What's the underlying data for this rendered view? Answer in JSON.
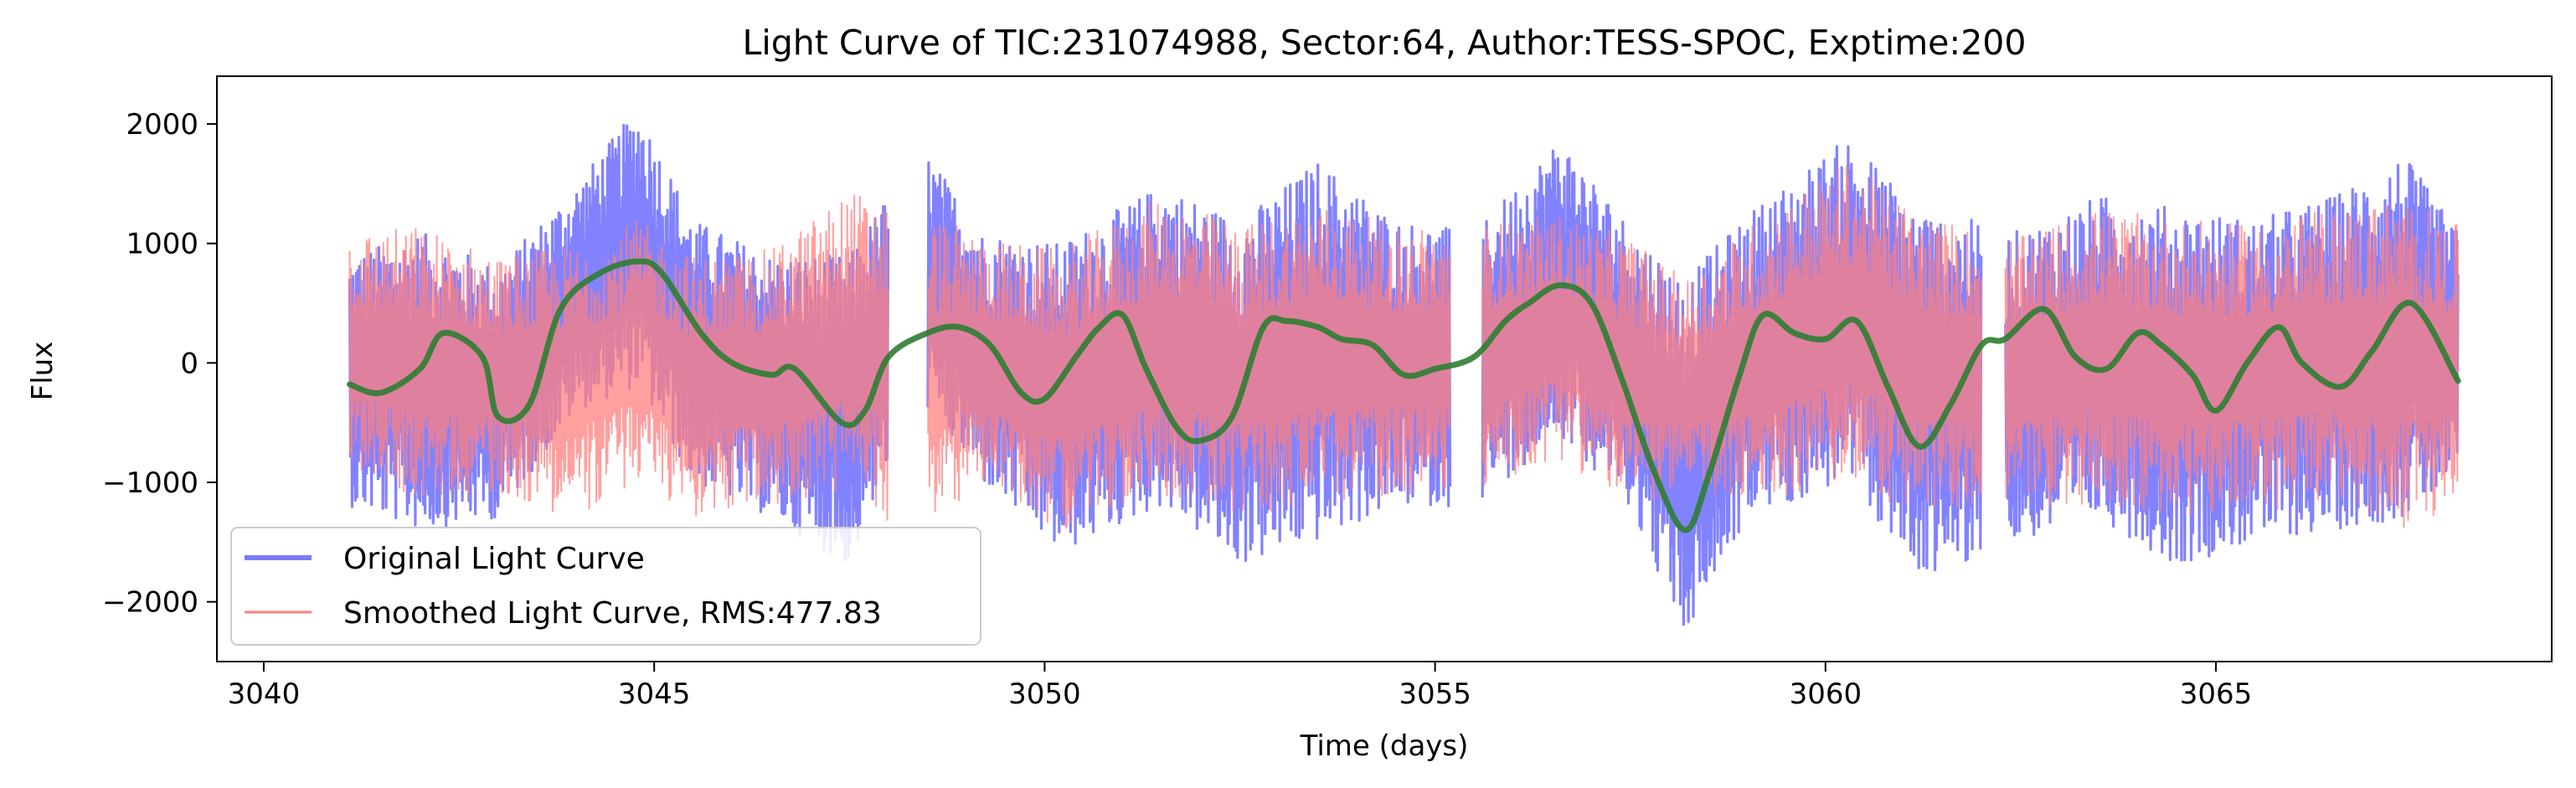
{
  "chart_data": {
    "type": "line",
    "title": "Light Curve of TIC:231074988, Sector:64, Author:TESS-SPOC, Exptime:200",
    "xlabel": "Time (days)",
    "ylabel": "Flux",
    "xlim": [
      3039.4,
      3069.3
    ],
    "ylim": [
      -2500,
      2400
    ],
    "x_ticks": [
      3040,
      3045,
      3050,
      3055,
      3060,
      3065
    ],
    "y_ticks": [
      2000,
      1000,
      0,
      -1000,
      -2000
    ],
    "x_tick_labels": [
      "3040",
      "3045",
      "3050",
      "3055",
      "3060",
      "3065"
    ],
    "y_tick_labels": [
      "2000",
      "1000",
      "0",
      "−1000",
      "−2000"
    ],
    "grid": false,
    "legend_position": "lower-left",
    "gaps": [
      [
        3048.0,
        3048.5
      ],
      [
        3055.2,
        3055.6
      ],
      [
        3062.0,
        3062.3
      ]
    ],
    "series": [
      {
        "name": "Original Light Curve",
        "color": "#7b7bff",
        "x_range": [
          3041.1,
          3068.1
        ],
        "band_envelope": {
          "x": [
            3041.1,
            3042.0,
            3043.0,
            3044.0,
            3044.8,
            3045.5,
            3046.5,
            3047.5,
            3048.4,
            3049.2,
            3050.2,
            3051.5,
            3052.5,
            3053.5,
            3054.5,
            3055.5,
            3056.6,
            3057.5,
            3058.2,
            3059.0,
            3060.3,
            3061.2,
            3062.5,
            3063.5,
            3064.5,
            3065.5,
            3066.5,
            3067.4,
            3068.1
          ],
          "high": [
            900,
            1100,
            800,
            1500,
            2150,
            1200,
            900,
            900,
            1850,
            1100,
            1000,
            1500,
            1200,
            1700,
            1200,
            1100,
            1900,
            1150,
            700,
            1250,
            1900,
            1300,
            1100,
            1400,
            1300,
            1200,
            1400,
            1750,
            1100
          ],
          "low": [
            -1200,
            -1400,
            -1300,
            -400,
            -200,
            -1000,
            -1300,
            -1700,
            -300,
            -1000,
            -1600,
            -1200,
            -1700,
            -1500,
            -1200,
            -1200,
            -600,
            -1200,
            -2300,
            -1300,
            -1000,
            -1800,
            -1500,
            -1300,
            -1700,
            -1500,
            -1400,
            -1300,
            -1000
          ]
        }
      },
      {
        "name": "Smoothed Light Curve, RMS:477.83",
        "color": "#ff7f7f",
        "x_range": [
          3041.1,
          3068.1
        ],
        "band_envelope": {
          "x": [
            3041.1,
            3042.0,
            3043.0,
            3044.0,
            3044.8,
            3045.5,
            3046.5,
            3047.5,
            3048.4,
            3049.2,
            3050.2,
            3051.5,
            3052.5,
            3053.5,
            3054.5,
            3055.5,
            3056.6,
            3057.5,
            3058.2,
            3059.0,
            3060.3,
            3061.2,
            3062.5,
            3063.5,
            3064.5,
            3065.5,
            3066.5,
            3067.4,
            3068.1
          ],
          "high": [
            1100,
            1150,
            900,
            1000,
            1200,
            900,
            950,
            1450,
            1300,
            1050,
            950,
            1400,
            1150,
            1350,
            1150,
            1150,
            1250,
            1050,
            700,
            1150,
            1700,
            1250,
            1050,
            1300,
            1200,
            1150,
            1300,
            1400,
            1150
          ],
          "low": [
            -900,
            -1150,
            -1100,
            -1300,
            -1000,
            -1300,
            -1200,
            -1100,
            -1500,
            -1000,
            -1400,
            -1100,
            -1300,
            -1200,
            -1100,
            -1100,
            -800,
            -1200,
            -1100,
            -1200,
            -1000,
            -1300,
            -1200,
            -1200,
            -1300,
            -1250,
            -1200,
            -1400,
            -1200
          ]
        }
      },
      {
        "name": "",
        "color": "#2e7d32",
        "x": [
          3041.1,
          3041.5,
          3042.0,
          3042.3,
          3042.8,
          3043.0,
          3043.4,
          3043.8,
          3044.3,
          3044.8,
          3045.1,
          3045.6,
          3046.0,
          3046.5,
          3046.8,
          3047.4,
          3047.7,
          3048.0,
          3048.5,
          3048.9,
          3049.3,
          3049.7,
          3050.0,
          3050.4,
          3050.7,
          3051.0,
          3051.3,
          3051.7,
          3052.0,
          3052.4,
          3052.8,
          3053.1,
          3053.5,
          3053.8,
          3054.2,
          3054.6,
          3055.0,
          3055.5,
          3055.9,
          3056.2,
          3056.6,
          3057.0,
          3057.4,
          3057.8,
          3058.2,
          3058.5,
          3058.9,
          3059.2,
          3059.6,
          3060.0,
          3060.4,
          3060.8,
          3061.2,
          3061.6,
          3062.0,
          3062.3,
          3062.8,
          3063.2,
          3063.6,
          3064.0,
          3064.3,
          3064.7,
          3065.0,
          3065.4,
          3065.8,
          3066.1,
          3066.6,
          3067.0,
          3067.5,
          3068.1
        ],
        "y": [
          -180,
          -250,
          -50,
          250,
          50,
          -450,
          -350,
          450,
          750,
          850,
          750,
          250,
          0,
          -100,
          -50,
          -500,
          -400,
          50,
          250,
          300,
          150,
          -250,
          -300,
          50,
          300,
          400,
          -50,
          -550,
          -650,
          -450,
          300,
          350,
          300,
          200,
          150,
          -100,
          -50,
          50,
          350,
          500,
          650,
          500,
          -150,
          -900,
          -1400,
          -950,
          -100,
          400,
          250,
          200,
          350,
          -200,
          -700,
          -350,
          150,
          200,
          450,
          50,
          -50,
          250,
          150,
          -100,
          -400,
          0,
          300,
          0,
          -200,
          100,
          500,
          -150
        ]
      }
    ]
  }
}
